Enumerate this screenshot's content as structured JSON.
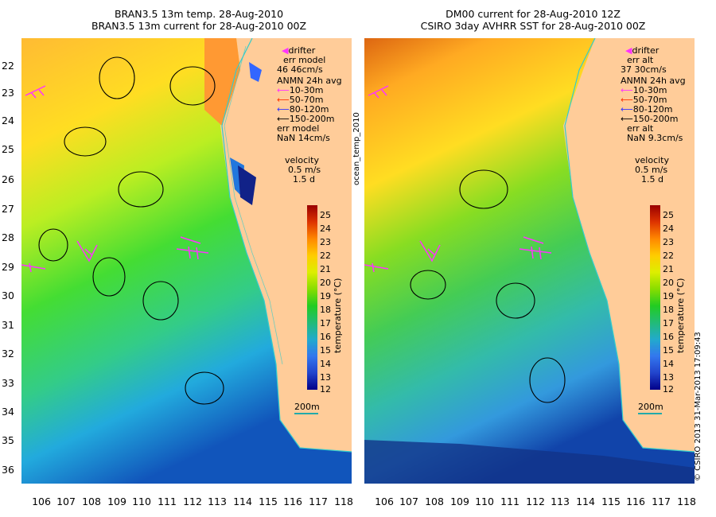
{
  "left_panel": {
    "title_line1": "BRAN3.5 13m temp. 28-Aug-2010",
    "title_line2": "BRAN3.5 13m current for 28-Aug-2010 00Z",
    "legend": {
      "drifter": "drifter",
      "err_label": "err model",
      "err_values": "46 46cm/s",
      "anmn": "ANMN 24h avg",
      "depths": [
        "10-30m",
        "50-70m",
        "80-120m",
        "150-200m"
      ],
      "err2_label": "err model",
      "err2_values": "NaN 14cm/s",
      "velocity": "velocity",
      "velocity_value": "0.5 m/s",
      "velocity_days": "1.5 d"
    },
    "side_label": "ocean_temp_2010",
    "scale_label": "200m"
  },
  "right_panel": {
    "title_line1": "DM00 current for 28-Aug-2010 12Z",
    "title_line2": "CSIRO 3day AVHRR SST for 28-Aug-2010 00Z",
    "legend": {
      "drifter": "drifter",
      "err_label": "err alt",
      "err_values": "37 30cm/s",
      "anmn": "ANMN 24h avg",
      "depths": [
        "10-30m",
        "50-70m",
        "80-120m",
        "150-200m"
      ],
      "err2_label": "err alt",
      "err2_values": "NaN 9.3cm/s",
      "velocity": "velocity",
      "velocity_value": "0.5 m/s",
      "velocity_days": "1.5 d"
    },
    "copyright": "© CSIRO 2013   31-Mar-2013 17:09:43",
    "scale_label": "200m"
  },
  "colorbar": {
    "unit_label": "temperature (°C)",
    "ticks": [
      "25",
      "24",
      "23",
      "22",
      "21",
      "20",
      "19",
      "18",
      "17",
      "16",
      "15",
      "14",
      "13",
      "12"
    ]
  },
  "axes": {
    "lat_ticks": [
      "22",
      "23",
      "24",
      "25",
      "26",
      "27",
      "28",
      "29",
      "30",
      "31",
      "32",
      "33",
      "34",
      "35",
      "36"
    ],
    "lon_ticks": [
      "106",
      "107",
      "108",
      "109",
      "110",
      "111",
      "112",
      "113",
      "114",
      "115",
      "116",
      "117",
      "118"
    ]
  },
  "colors": {
    "land": "#ffcc99",
    "coast_line": "#33cccc",
    "depth_10_30": "#ff33ff",
    "depth_50_70": "#ff3300",
    "depth_80_120": "#3333ff",
    "depth_150_200": "#000000",
    "drifter": "#ff33ff"
  }
}
